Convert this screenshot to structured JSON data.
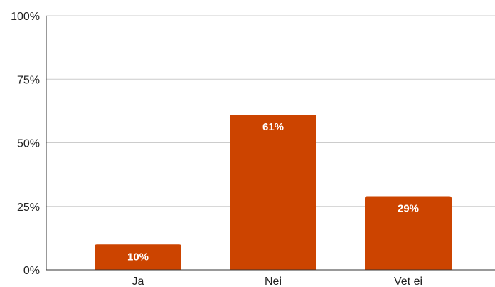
{
  "chart_data": {
    "type": "bar",
    "title": "",
    "xlabel": "",
    "ylabel": "",
    "categories": [
      "Ja",
      "Nei",
      "Vet ei"
    ],
    "values": [
      10,
      61,
      29
    ],
    "data_labels": [
      "10%",
      "61%",
      "29%"
    ],
    "ylim": [
      0,
      100
    ],
    "yticks": [
      0,
      25,
      50,
      75,
      100
    ],
    "ytick_labels": [
      "0%",
      "25%",
      "50%",
      "75%",
      "100%"
    ],
    "grid": true,
    "legend": "none",
    "colors": {
      "bar": "#cc4400",
      "grid": "#cccccc",
      "axis": "#333333"
    }
  }
}
